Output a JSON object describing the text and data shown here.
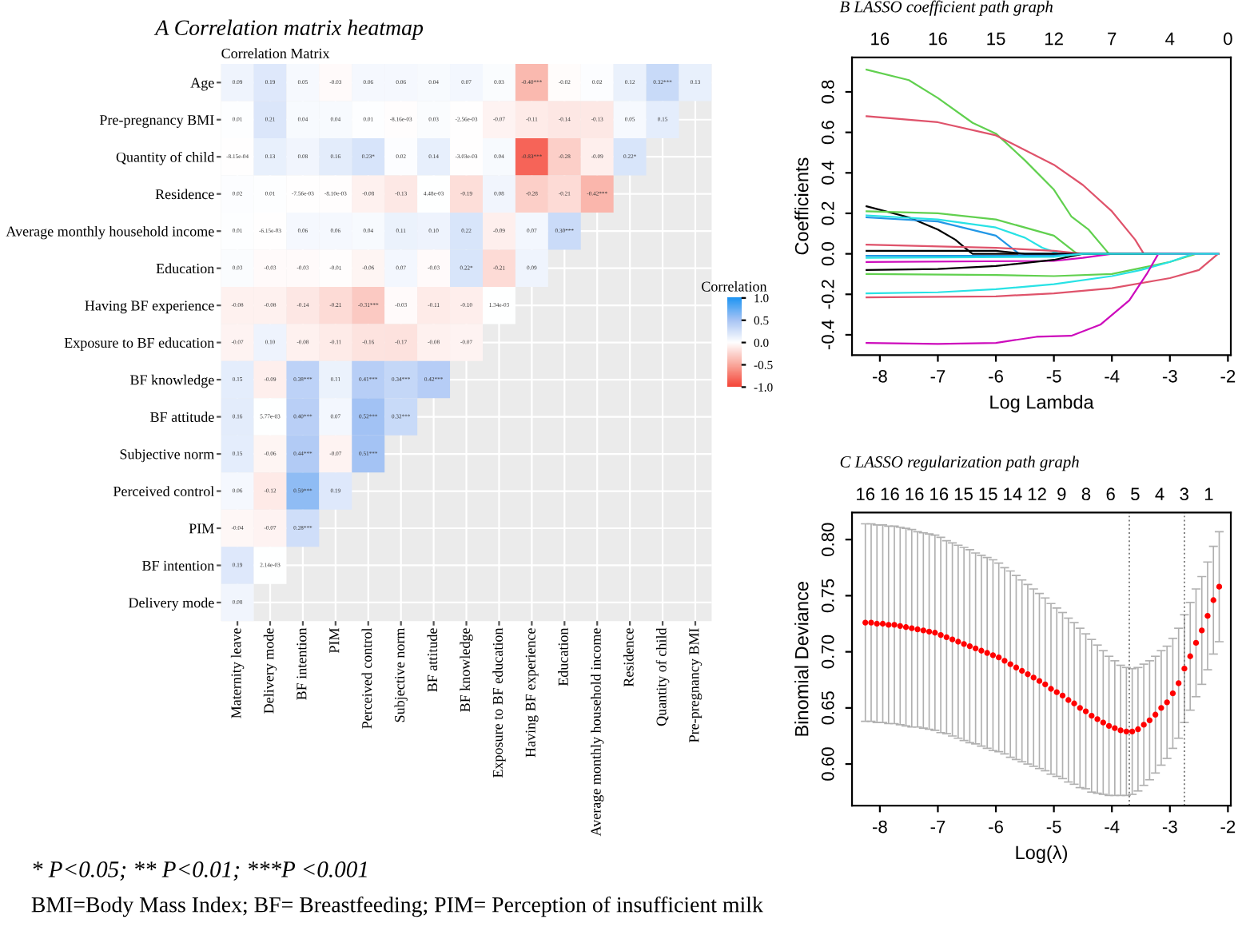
{
  "chart_data": [
    {
      "type": "heatmap",
      "title": "A Correlation matrix heatmap",
      "subtitle": "Correlation Matrix",
      "categories": [
        "Maternity leave",
        "Delivery mode",
        "BF intention",
        "PIM",
        "Perceived control",
        "Subjective norm",
        "BF attitude",
        "BF knowledge",
        "Exposure to BF education",
        "Having BF experience",
        "Education",
        "Average monthly household income",
        "Residence",
        "Quantity of child",
        "Pre-pregnancy BMI"
      ],
      "y_categories": [
        "Age",
        "Pre-pregnancy BMI",
        "Quantity of child",
        "Residence",
        "Average monthly household income",
        "Education",
        "Having BF experience",
        "Exposure to BF education",
        "BF knowledge",
        "BF attitude",
        "Subjective norm",
        "Perceived control",
        "PIM",
        "BF intention",
        "Delivery mode"
      ],
      "cells": [
        [
          0.09,
          0.19,
          0.05,
          -0.03,
          0.06,
          0.06,
          0.04,
          0.07,
          0.03,
          -0.4,
          -0.02,
          0.02,
          0.12,
          0.32,
          0.13
        ],
        [
          0.01,
          0.21,
          0.04,
          0.04,
          0.01,
          -0.00816,
          0.03,
          -0.00256,
          -0.07,
          -0.11,
          -0.14,
          -0.13,
          0.05,
          0.15,
          null
        ],
        [
          -0.000815,
          0.13,
          0.08,
          0.16,
          0.23,
          0.02,
          0.14,
          -0.00303,
          0.04,
          -0.83,
          -0.28,
          -0.09,
          0.22,
          null,
          null
        ],
        [
          0.02,
          0.01,
          -0.00756,
          -0.0081,
          -0.08,
          -0.13,
          0.00448,
          -0.19,
          0.08,
          -0.28,
          -0.21,
          -0.42,
          null,
          null,
          null
        ],
        [
          0.01,
          -0.00615,
          0.06,
          0.06,
          0.04,
          0.11,
          0.1,
          0.22,
          -0.09,
          0.07,
          0.3,
          null,
          null,
          null,
          null
        ],
        [
          0.03,
          -0.03,
          -0.03,
          -0.01,
          -0.06,
          0.07,
          -0.03,
          0.22,
          -0.21,
          0.09,
          null,
          null,
          null,
          null,
          null
        ],
        [
          -0.08,
          -0.08,
          -0.14,
          -0.21,
          -0.31,
          -0.03,
          -0.11,
          -0.1,
          0.00134,
          null,
          null,
          null,
          null,
          null,
          null
        ],
        [
          -0.07,
          0.1,
          -0.08,
          -0.11,
          -0.16,
          -0.17,
          -0.08,
          -0.07,
          null,
          null,
          null,
          null,
          null,
          null,
          null
        ],
        [
          0.15,
          -0.09,
          0.38,
          0.11,
          0.41,
          0.34,
          0.42,
          null,
          null,
          null,
          null,
          null,
          null,
          null,
          null
        ],
        [
          0.16,
          0.00577,
          0.4,
          0.07,
          0.52,
          0.32,
          null,
          null,
          null,
          null,
          null,
          null,
          null,
          null,
          null
        ],
        [
          0.15,
          -0.06,
          0.44,
          -0.07,
          0.51,
          null,
          null,
          null,
          null,
          null,
          null,
          null,
          null,
          null,
          null
        ],
        [
          0.06,
          -0.12,
          0.59,
          0.19,
          null,
          null,
          null,
          null,
          null,
          null,
          null,
          null,
          null,
          null,
          null
        ],
        [
          -0.04,
          -0.07,
          0.28,
          null,
          null,
          null,
          null,
          null,
          null,
          null,
          null,
          null,
          null,
          null,
          null
        ],
        [
          0.19,
          0.00214,
          null,
          null,
          null,
          null,
          null,
          null,
          null,
          null,
          null,
          null,
          null,
          null,
          null
        ],
        [
          0.08,
          null,
          null,
          null,
          null,
          null,
          null,
          null,
          null,
          null,
          null,
          null,
          null,
          null,
          null
        ]
      ],
      "cell_labels": [
        [
          "0.09",
          "0.19",
          "0.05",
          "-0.03",
          "0.06",
          "0.06",
          "0.04",
          "0.07",
          "0.03",
          "-0.40***",
          "-0.02",
          "0.02",
          "0.12",
          "0.32***",
          "0.13"
        ],
        [
          "0.01",
          "0.21",
          "0.04",
          "0.04",
          "0.01",
          "-8.16e-03",
          "0.03",
          "-2.56e-03",
          "-0.07",
          "-0.11",
          "-0.14",
          "-0.13",
          "0.05",
          "0.15",
          null
        ],
        [
          "-8.15e-04",
          "0.13",
          "0.08",
          "0.16",
          "0.23*",
          "0.02",
          "0.14",
          "-3.03e-03",
          "0.04",
          "-0.83***",
          "-0.28",
          "-0.09",
          "0.22*",
          null,
          null
        ],
        [
          "0.02",
          "0.01",
          "-7.56e-03",
          "-8.10e-03",
          "-0.08",
          "-0.13",
          "4.48e-03",
          "-0.19",
          "0.08",
          "-0.28",
          "-0.21",
          "-0.42***",
          null,
          null,
          null
        ],
        [
          "0.01",
          "-6.15e-03",
          "0.06",
          "0.06",
          "0.04",
          "0.11",
          "0.10",
          "0.22",
          "-0.09",
          "0.07",
          "0.30***",
          null,
          null,
          null,
          null
        ],
        [
          "0.03",
          "-0.03",
          "-0.03",
          "-0.01",
          "-0.06",
          "0.07",
          "-0.03",
          "0.22*",
          "-0.21",
          "0.09",
          null,
          null,
          null,
          null,
          null
        ],
        [
          "-0.08",
          "-0.08",
          "-0.14",
          "-0.21",
          "-0.31***",
          "-0.03",
          "-0.11",
          "-0.10",
          "1.34e-03",
          null,
          null,
          null,
          null,
          null,
          null
        ],
        [
          "-0.07",
          "0.10",
          "-0.08",
          "-0.11",
          "-0.16",
          "-0.17",
          "-0.08",
          "-0.07",
          null,
          null,
          null,
          null,
          null,
          null,
          null
        ],
        [
          "0.15",
          "-0.09",
          "0.38***",
          "0.11",
          "0.41***",
          "0.34***",
          "0.42***",
          null,
          null,
          null,
          null,
          null,
          null,
          null,
          null
        ],
        [
          "0.16",
          "5.77e-03",
          "0.40***",
          "0.07",
          "0.52***",
          "0.32***",
          null,
          null,
          null,
          null,
          null,
          null,
          null,
          null,
          null
        ],
        [
          "0.15",
          "-0.06",
          "0.44***",
          "-0.07",
          "0.51***",
          null,
          null,
          null,
          null,
          null,
          null,
          null,
          null,
          null,
          null
        ],
        [
          "0.06",
          "-0.12",
          "0.59***",
          "0.19",
          null,
          null,
          null,
          null,
          null,
          null,
          null,
          null,
          null,
          null,
          null
        ],
        [
          "-0.04",
          "-0.07",
          "0.28***",
          null,
          null,
          null,
          null,
          null,
          null,
          null,
          null,
          null,
          null,
          null,
          null
        ],
        [
          "0.19",
          "2.14e-03",
          null,
          null,
          null,
          null,
          null,
          null,
          null,
          null,
          null,
          null,
          null,
          null,
          null
        ],
        [
          "0.08",
          null,
          null,
          null,
          null,
          null,
          null,
          null,
          null,
          null,
          null,
          null,
          null,
          null,
          null
        ]
      ],
      "clabel": "Correlation",
      "clim": [
        -1,
        1
      ],
      "cticks": [
        {
          "value": -1,
          "label": "-1.0"
        },
        {
          "value": -0.5,
          "label": "-0.5"
        },
        {
          "value": 0,
          "label": "0.0"
        },
        {
          "value": 0.5,
          "label": "0.5"
        },
        {
          "value": 1,
          "label": "1.0"
        }
      ],
      "grid": true,
      "annotations": [
        "* P<0.05; ** P<0.01; ***P <0.001",
        "BMI=Body Mass Index; BF= Breastfeeding; PIM= Perception of insufficient milk"
      ]
    },
    {
      "type": "line",
      "title": "B LASSO coefficient path graph",
      "xlabel": "Log Lambda",
      "ylabel": "Coefficients",
      "xlim": [
        -8.48,
        -1.95
      ],
      "xticks": [
        -8,
        -7,
        -6,
        -5,
        -4,
        -3,
        -2
      ],
      "ylim": [
        -0.5,
        0.97
      ],
      "yticks": [
        -0.4,
        -0.2,
        {
          "value": 0,
          "label": "0.0"
        },
        0.2,
        0.4,
        0.6,
        0.8
      ],
      "annotations": [
        "16",
        "16",
        "15",
        "12",
        "7",
        "4",
        "0"
      ],
      "line_style": "solid",
      "marker": "none",
      "series": [
        {
          "color": "#61d04f",
          "x": [
            -8.23,
            -7.5,
            -7,
            -6.4,
            -6,
            -5.5,
            -5,
            -4.7,
            -4.4,
            -4.05,
            -2.17
          ],
          "values": [
            0.91,
            0.858,
            0.77,
            0.647,
            0.594,
            0.462,
            0.317,
            0.185,
            0.119,
            0.0,
            0.0
          ]
        },
        {
          "color": "#df536b",
          "x": [
            -8.23,
            -7,
            -6,
            -5,
            -4.5,
            -4,
            -3.6,
            -3.45,
            -2.17
          ],
          "values": [
            0.68,
            0.65,
            0.585,
            0.44,
            0.34,
            0.21,
            0.07,
            0.0,
            0.0
          ]
        },
        {
          "color": "#000000",
          "x": [
            -8.23,
            -7.5,
            -7,
            -6.7,
            -6.45,
            -6.4,
            -2.17
          ],
          "values": [
            0.235,
            0.18,
            0.12,
            0.07,
            0.01,
            0.0,
            0.0
          ]
        },
        {
          "color": "#61d04f",
          "x": [
            -8.23,
            -7,
            -6,
            -5,
            -4.6,
            -2.17
          ],
          "values": [
            0.21,
            0.2,
            0.17,
            0.09,
            0.0,
            0.0
          ]
        },
        {
          "color": "#28e2e5",
          "x": [
            -8.23,
            -7,
            -6,
            -5.5,
            -5.2,
            -4.9,
            -2.17
          ],
          "values": [
            0.19,
            0.17,
            0.13,
            0.08,
            0.03,
            0.0,
            0.0
          ]
        },
        {
          "color": "#2297e6",
          "x": [
            -8.23,
            -7,
            -6,
            -5.6,
            -2.17
          ],
          "values": [
            0.18,
            0.16,
            0.09,
            0.0,
            0.0
          ]
        },
        {
          "color": "#df536b",
          "x": [
            -8.23,
            -6,
            -5,
            -4.5,
            -2.17
          ],
          "values": [
            0.045,
            0.03,
            0.015,
            0.0,
            0.0
          ]
        },
        {
          "color": "#000000",
          "x": [
            -8.23,
            -6,
            -5.5,
            -2.17
          ],
          "values": [
            0.015,
            0.015,
            0.0,
            0.0
          ]
        },
        {
          "color": "#2297e6",
          "x": [
            -8.23,
            -5,
            -4.5,
            -2.17
          ],
          "values": [
            -0.01,
            -0.01,
            0.0,
            0.0
          ]
        },
        {
          "color": "#cd0bbc",
          "x": [
            -8.23,
            -5,
            -4.5,
            -4,
            -2.17
          ],
          "values": [
            -0.04,
            -0.035,
            -0.02,
            0.0,
            0.0
          ]
        },
        {
          "color": "#000000",
          "x": [
            -8.23,
            -7,
            -6,
            -5,
            -4.5,
            -2.17
          ],
          "values": [
            -0.08,
            -0.075,
            -0.06,
            -0.03,
            0.0,
            0.0
          ]
        },
        {
          "color": "#61d04f",
          "x": [
            -8.23,
            -6,
            -5,
            -4,
            -3.5,
            -3,
            -2.55,
            -2.17
          ],
          "values": [
            -0.1,
            -0.105,
            -0.11,
            -0.1,
            -0.07,
            -0.04,
            0.0,
            0.0
          ]
        },
        {
          "color": "#28e2e5",
          "x": [
            -8.23,
            -7,
            -6,
            -5,
            -4,
            -3.5,
            -3,
            -2.6,
            -2.17
          ],
          "values": [
            -0.195,
            -0.19,
            -0.175,
            -0.15,
            -0.11,
            -0.08,
            -0.04,
            0.0,
            0.0
          ]
        },
        {
          "color": "#df536b",
          "x": [
            -8.23,
            -6,
            -5,
            -4,
            -3,
            -2.5,
            -2.17
          ],
          "values": [
            -0.215,
            -0.21,
            -0.195,
            -0.17,
            -0.12,
            -0.08,
            0.0
          ]
        },
        {
          "color": "#cd0bbc",
          "x": [
            -8.23,
            -7,
            -6,
            -5.3,
            -4.7,
            -4.2,
            -3.7,
            -3.4,
            -3.2,
            -2.17
          ],
          "values": [
            -0.44,
            -0.445,
            -0.44,
            -0.41,
            -0.405,
            -0.35,
            -0.23,
            -0.1,
            0.0,
            0.0
          ]
        },
        {
          "color": "#28e2e5",
          "x": [
            -8.23,
            -5,
            -4.5,
            -2.17
          ],
          "values": [
            -0.02,
            -0.015,
            0.0,
            0.0
          ]
        }
      ]
    },
    {
      "type": "scatter",
      "title": "C LASSO regularization path graph",
      "xlabel": "Log(λ)",
      "ylabel": "Binomial Deviance",
      "xlim": [
        -8.48,
        -1.95
      ],
      "xticks": [
        -8,
        -7,
        -6,
        -5,
        -4,
        -3,
        -2
      ],
      "ylim": [
        0.563,
        0.824
      ],
      "yticks": [
        {
          "value": 0.6,
          "label": "0.60"
        },
        {
          "value": 0.65,
          "label": "0.65"
        },
        {
          "value": 0.7,
          "label": "0.70"
        },
        {
          "value": 0.75,
          "label": "0.75"
        },
        {
          "value": 0.8,
          "label": "0.80"
        }
      ],
      "annotations": [
        "16",
        "16",
        "16",
        "16",
        "15",
        "15",
        "14",
        "12",
        "9",
        "8",
        "6",
        "5",
        "4",
        "3",
        "1"
      ],
      "marker": "circle",
      "ref_lines": [
        {
          "axis": "x",
          "value": -3.7,
          "line_style": "dotted",
          "color": "#808080"
        },
        {
          "axis": "x",
          "value": -2.75,
          "line_style": "dotted",
          "color": "#808080"
        }
      ],
      "series": [
        {
          "color": "#ff0000",
          "x": [
            -8.25,
            -8.15,
            -8.05,
            -7.95,
            -7.85,
            -7.75,
            -7.65,
            -7.55,
            -7.45,
            -7.35,
            -7.25,
            -7.15,
            -7.05,
            -6.95,
            -6.85,
            -6.75,
            -6.65,
            -6.55,
            -6.45,
            -6.35,
            -6.25,
            -6.15,
            -6.05,
            -5.95,
            -5.85,
            -5.75,
            -5.65,
            -5.55,
            -5.45,
            -5.35,
            -5.25,
            -5.15,
            -5.05,
            -4.95,
            -4.85,
            -4.75,
            -4.65,
            -4.55,
            -4.45,
            -4.35,
            -4.25,
            -4.15,
            -4.05,
            -3.95,
            -3.85,
            -3.75,
            -3.65,
            -3.55,
            -3.45,
            -3.35,
            -3.25,
            -3.15,
            -3.05,
            -2.95,
            -2.85,
            -2.75,
            -2.65,
            -2.55,
            -2.45,
            -2.35,
            -2.25,
            -2.15
          ],
          "values": [
            0.726,
            0.726,
            0.725,
            0.725,
            0.724,
            0.724,
            0.723,
            0.722,
            0.721,
            0.72,
            0.719,
            0.718,
            0.717,
            0.715,
            0.713,
            0.711,
            0.709,
            0.707,
            0.705,
            0.703,
            0.701,
            0.699,
            0.697,
            0.695,
            0.692,
            0.689,
            0.686,
            0.683,
            0.68,
            0.677,
            0.674,
            0.671,
            0.667,
            0.664,
            0.661,
            0.657,
            0.654,
            0.65,
            0.647,
            0.643,
            0.64,
            0.637,
            0.634,
            0.632,
            0.63,
            0.629,
            0.629,
            0.631,
            0.635,
            0.639,
            0.644,
            0.65,
            0.655,
            0.663,
            0.672,
            0.685,
            0.696,
            0.708,
            0.719,
            0.732,
            0.746,
            0.758
          ],
          "errors": [
            0.088,
            0.088,
            0.088,
            0.088,
            0.088,
            0.088,
            0.088,
            0.088,
            0.088,
            0.087,
            0.087,
            0.087,
            0.087,
            0.087,
            0.086,
            0.086,
            0.086,
            0.086,
            0.086,
            0.085,
            0.085,
            0.085,
            0.085,
            0.084,
            0.083,
            0.083,
            0.082,
            0.081,
            0.08,
            0.079,
            0.078,
            0.077,
            0.076,
            0.075,
            0.074,
            0.073,
            0.072,
            0.071,
            0.069,
            0.068,
            0.066,
            0.064,
            0.062,
            0.06,
            0.058,
            0.057,
            0.056,
            0.055,
            0.054,
            0.053,
            0.052,
            0.051,
            0.05,
            0.049,
            0.049,
            0.048,
            0.048,
            0.048,
            0.048,
            0.048,
            0.048,
            0.049
          ]
        }
      ]
    }
  ]
}
